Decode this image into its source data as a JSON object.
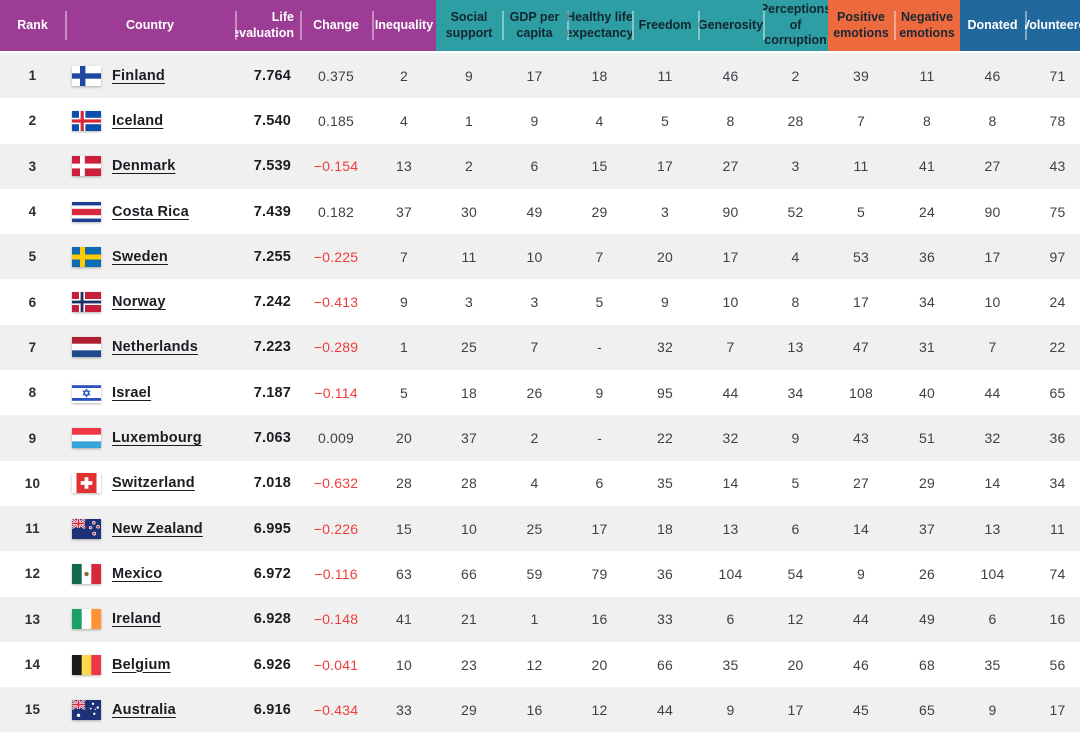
{
  "header": {
    "groups": [
      {
        "id": "ranking",
        "color": "#9c3c95",
        "text_color": "#ffffff"
      },
      {
        "id": "factors",
        "color": "#2d9ea4",
        "text_color": "#13262f"
      },
      {
        "id": "emotions",
        "color": "#ec6a3d",
        "text_color": "#1d2733"
      },
      {
        "id": "giving",
        "color": "#20689c",
        "text_color": "#ffffff"
      }
    ],
    "columns": [
      {
        "id": "rank",
        "label": "Rank",
        "group": 0
      },
      {
        "id": "country",
        "label": "Country",
        "group": 0
      },
      {
        "id": "life-evaluation",
        "label": "Life evaluation",
        "group": 0
      },
      {
        "id": "change",
        "label": "Change",
        "group": 0
      },
      {
        "id": "inequality",
        "label": "Inequality",
        "group": 0
      },
      {
        "id": "social-support",
        "label": "Social support",
        "group": 1
      },
      {
        "id": "gdp-per-capita",
        "label": "GDP per capita",
        "group": 1
      },
      {
        "id": "healthy-life-expectancy",
        "label": "Healthy life expectancy",
        "group": 1
      },
      {
        "id": "freedom",
        "label": "Freedom",
        "group": 1
      },
      {
        "id": "generosity",
        "label": "Generosity",
        "group": 1
      },
      {
        "id": "perceptions-of-corruption",
        "label": "Perceptions of corruption",
        "group": 1
      },
      {
        "id": "positive-emotions",
        "label": "Positive emotions",
        "group": 2
      },
      {
        "id": "negative-emotions",
        "label": "Negative emotions",
        "group": 2
      },
      {
        "id": "donated",
        "label": "Donated",
        "group": 3
      },
      {
        "id": "volunteered",
        "label": "Volunteered",
        "group": 3
      }
    ]
  },
  "style": {
    "row_odd_color": "#f0f0f1",
    "row_even_color": "#ffffff",
    "negative_change_color": "#ef3d3d"
  },
  "rows": [
    {
      "rank": "1",
      "country": "Finland",
      "flag_icon": "finland-flag-icon",
      "flag": "finland",
      "life_evaluation": "7.764",
      "change": "0.375",
      "values": [
        "2",
        "9",
        "17",
        "18",
        "11",
        "46",
        "2",
        "39",
        "11",
        "46",
        "71"
      ]
    },
    {
      "rank": "2",
      "country": "Iceland",
      "flag_icon": "iceland-flag-icon",
      "flag": "iceland",
      "life_evaluation": "7.540",
      "change": "0.185",
      "values": [
        "4",
        "1",
        "9",
        "4",
        "5",
        "8",
        "28",
        "7",
        "8",
        "8",
        "78"
      ]
    },
    {
      "rank": "3",
      "country": "Denmark",
      "flag_icon": "denmark-flag-icon",
      "flag": "denmark",
      "life_evaluation": "7.539",
      "change": "−0.154",
      "values": [
        "13",
        "2",
        "6",
        "15",
        "17",
        "27",
        "3",
        "11",
        "41",
        "27",
        "43"
      ]
    },
    {
      "rank": "4",
      "country": "Costa Rica",
      "flag_icon": "costa-rica-flag-icon",
      "flag": "costarica",
      "life_evaluation": "7.439",
      "change": "0.182",
      "values": [
        "37",
        "30",
        "49",
        "29",
        "3",
        "90",
        "52",
        "5",
        "24",
        "90",
        "75"
      ]
    },
    {
      "rank": "5",
      "country": "Sweden",
      "flag_icon": "sweden-flag-icon",
      "flag": "sweden",
      "life_evaluation": "7.255",
      "change": "−0.225",
      "values": [
        "7",
        "11",
        "10",
        "7",
        "20",
        "17",
        "4",
        "53",
        "36",
        "17",
        "97"
      ]
    },
    {
      "rank": "6",
      "country": "Norway",
      "flag_icon": "norway-flag-icon",
      "flag": "norway",
      "life_evaluation": "7.242",
      "change": "−0.413",
      "values": [
        "9",
        "3",
        "3",
        "5",
        "9",
        "10",
        "8",
        "17",
        "34",
        "10",
        "24"
      ]
    },
    {
      "rank": "7",
      "country": "Netherlands",
      "flag_icon": "netherlands-flag-icon",
      "flag": "netherlands",
      "life_evaluation": "7.223",
      "change": "−0.289",
      "values": [
        "1",
        "25",
        "7",
        "-",
        "32",
        "7",
        "13",
        "47",
        "31",
        "7",
        "22"
      ]
    },
    {
      "rank": "8",
      "country": "Israel",
      "flag_icon": "israel-flag-icon",
      "flag": "israel",
      "life_evaluation": "7.187",
      "change": "−0.114",
      "values": [
        "5",
        "18",
        "26",
        "9",
        "95",
        "44",
        "34",
        "108",
        "40",
        "44",
        "65"
      ]
    },
    {
      "rank": "9",
      "country": "Luxembourg",
      "flag_icon": "luxembourg-flag-icon",
      "flag": "luxembourg",
      "life_evaluation": "7.063",
      "change": "0.009",
      "values": [
        "20",
        "37",
        "2",
        "-",
        "22",
        "32",
        "9",
        "43",
        "51",
        "32",
        "36"
      ]
    },
    {
      "rank": "10",
      "country": "Switzerland",
      "flag_icon": "switzerland-flag-icon",
      "flag": "switzerland",
      "life_evaluation": "7.018",
      "change": "−0.632",
      "values": [
        "28",
        "28",
        "4",
        "6",
        "35",
        "14",
        "5",
        "27",
        "29",
        "14",
        "34"
      ]
    },
    {
      "rank": "11",
      "country": "New Zealand",
      "flag_icon": "new-zealand-flag-icon",
      "flag": "newzealand",
      "life_evaluation": "6.995",
      "change": "−0.226",
      "values": [
        "15",
        "10",
        "25",
        "17",
        "18",
        "13",
        "6",
        "14",
        "37",
        "13",
        "11"
      ]
    },
    {
      "rank": "12",
      "country": "Mexico",
      "flag_icon": "mexico-flag-icon",
      "flag": "mexico",
      "life_evaluation": "6.972",
      "change": "−0.116",
      "values": [
        "63",
        "66",
        "59",
        "79",
        "36",
        "104",
        "54",
        "9",
        "26",
        "104",
        "74"
      ]
    },
    {
      "rank": "13",
      "country": "Ireland",
      "flag_icon": "ireland-flag-icon",
      "flag": "ireland",
      "life_evaluation": "6.928",
      "change": "−0.148",
      "values": [
        "41",
        "21",
        "1",
        "16",
        "33",
        "6",
        "12",
        "44",
        "49",
        "6",
        "16"
      ]
    },
    {
      "rank": "14",
      "country": "Belgium",
      "flag_icon": "belgium-flag-icon",
      "flag": "belgium",
      "life_evaluation": "6.926",
      "change": "−0.041",
      "values": [
        "10",
        "23",
        "12",
        "20",
        "66",
        "35",
        "20",
        "46",
        "68",
        "35",
        "56"
      ]
    },
    {
      "rank": "15",
      "country": "Australia",
      "flag_icon": "australia-flag-icon",
      "flag": "australia",
      "life_evaluation": "6.916",
      "change": "−0.434",
      "values": [
        "33",
        "29",
        "16",
        "12",
        "44",
        "9",
        "17",
        "45",
        "65",
        "9",
        "17"
      ]
    }
  ]
}
